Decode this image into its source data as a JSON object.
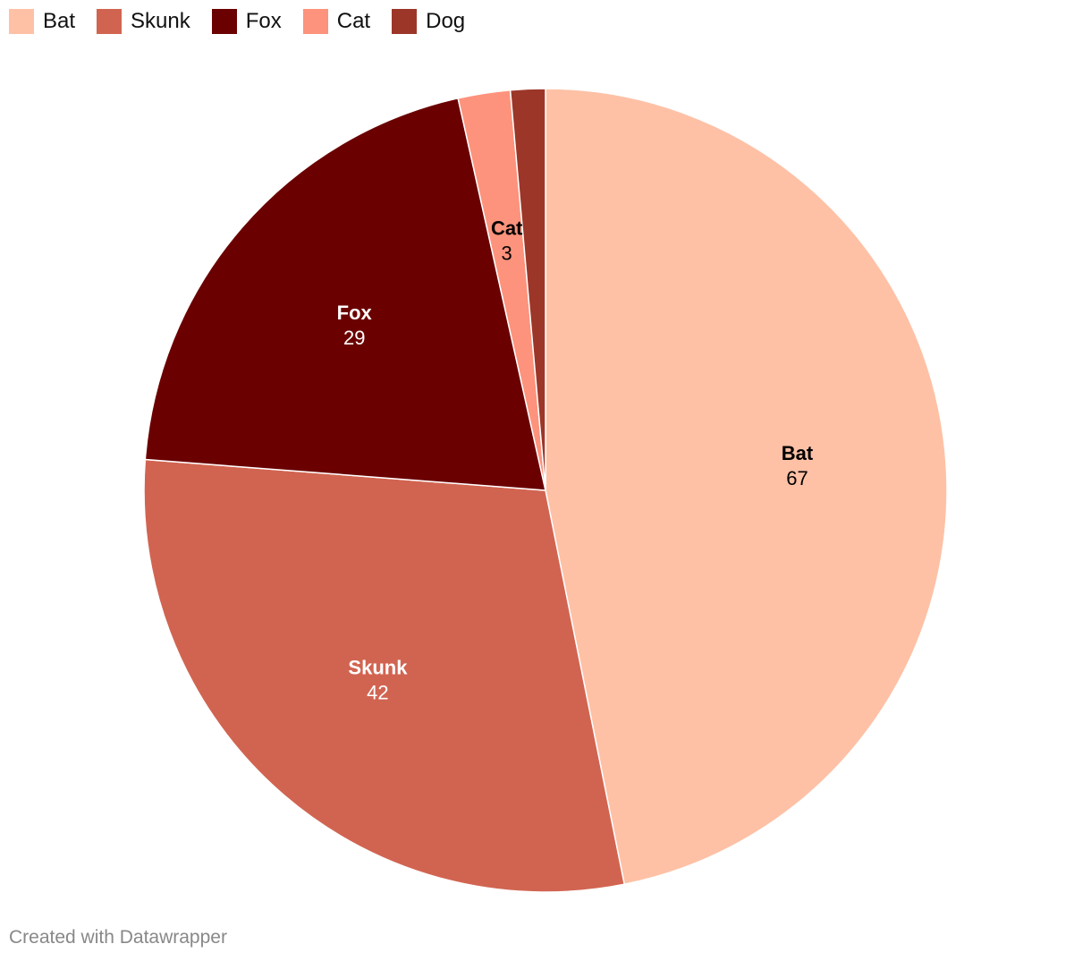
{
  "chart_data": {
    "type": "pie",
    "title": "",
    "legend": "top-left",
    "series": [
      {
        "name": "Bat",
        "value": 67,
        "color": "#fec1a6",
        "label_color": "#000000"
      },
      {
        "name": "Skunk",
        "value": 42,
        "color": "#d16451",
        "label_color": "#ffffff"
      },
      {
        "name": "Fox",
        "value": 29,
        "color": "#6b0000",
        "label_color": "#ffffff"
      },
      {
        "name": "Cat",
        "value": 3,
        "color": "#fd937c",
        "label_color": "#000000"
      },
      {
        "name": "Dog",
        "value": 2,
        "color": "#9c3629",
        "label_color": "#000000",
        "label_hidden": true
      }
    ]
  },
  "footer": {
    "credit": "Created with Datawrapper"
  }
}
